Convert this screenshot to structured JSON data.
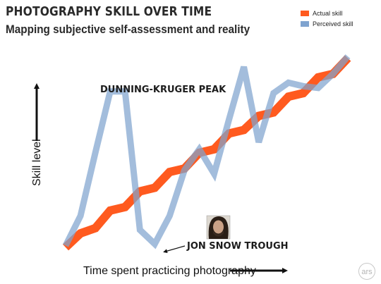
{
  "header": {
    "title": "PHOTOGRAPHY SKILL OVER TIME",
    "subtitle": "Mapping subjective self-assessment and reality"
  },
  "watermark": {
    "text": "ars"
  },
  "colors": {
    "actual": "#ff5a1f",
    "perceived": "#7fa3cf"
  },
  "chart_data": {
    "type": "line",
    "title": "PHOTOGRAPHY SKILL OVER TIME",
    "subtitle": "Mapping subjective self-assessment and reality",
    "xlabel": "Time spent practicing photography",
    "ylabel": "Skill level",
    "grid": false,
    "legend_position": "top-right",
    "legend": [
      "Actual skill",
      "Perceived skill"
    ],
    "series": [
      {
        "name": "Actual skill",
        "color": "#ff5a1f",
        "x": [
          0,
          1,
          2,
          3,
          4,
          5,
          6,
          7,
          8,
          9,
          10,
          11,
          12,
          13,
          14,
          15,
          16,
          17,
          18,
          19
        ],
        "values": [
          2,
          10,
          13,
          23,
          25,
          34,
          36,
          45,
          47,
          56,
          58,
          67,
          69,
          77,
          79,
          88,
          90,
          99,
          101,
          110
        ]
      },
      {
        "name": "Perceived skill",
        "color": "#7fa3cf",
        "x": [
          0,
          1,
          2,
          3,
          4,
          5,
          6,
          7,
          8,
          9,
          10,
          11,
          12,
          13,
          14,
          15,
          16,
          17,
          18,
          19
        ],
        "values": [
          3,
          20,
          56,
          91,
          91,
          12,
          4,
          20,
          46,
          58,
          44,
          75,
          105,
          62,
          90,
          96,
          94,
          93,
          101,
          111
        ]
      }
    ],
    "annotations": [
      {
        "text": "DUNNING-KRUGER PEAK",
        "x": 4,
        "y": 91
      },
      {
        "text": "JON SNOW TROUGH",
        "x": 5,
        "y": 4
      }
    ]
  }
}
